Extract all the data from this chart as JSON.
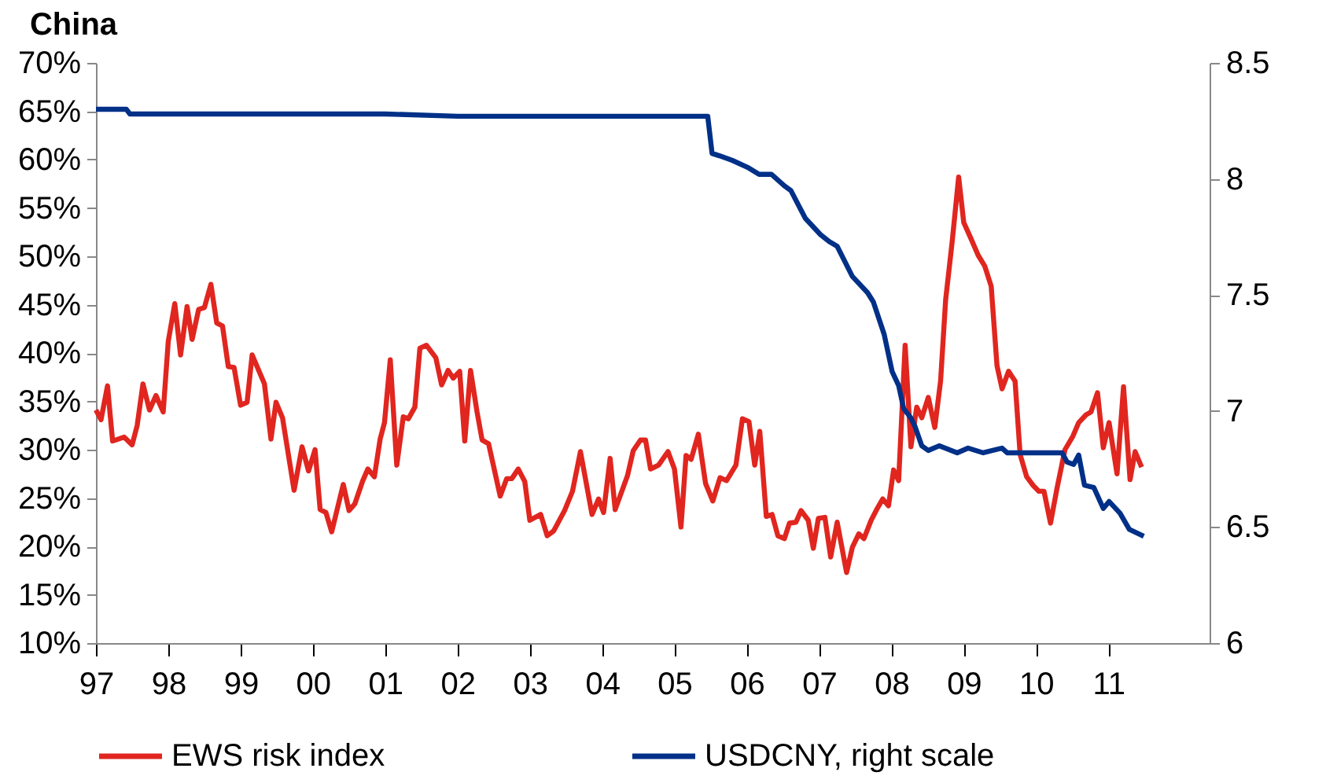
{
  "chart_data": {
    "type": "line",
    "title": "China",
    "xlim": [
      1997,
      2012.4
    ],
    "xticks": [
      {
        "value": 1997,
        "label": "97"
      },
      {
        "value": 1998,
        "label": "98"
      },
      {
        "value": 1999,
        "label": "99"
      },
      {
        "value": 2000,
        "label": "00"
      },
      {
        "value": 2001,
        "label": "01"
      },
      {
        "value": 2002,
        "label": "02"
      },
      {
        "value": 2003,
        "label": "03"
      },
      {
        "value": 2004,
        "label": "04"
      },
      {
        "value": 2005,
        "label": "05"
      },
      {
        "value": 2006,
        "label": "06"
      },
      {
        "value": 2007,
        "label": "07"
      },
      {
        "value": 2008,
        "label": "08"
      },
      {
        "value": 2009,
        "label": "09"
      },
      {
        "value": 2010,
        "label": "10"
      },
      {
        "value": 2011,
        "label": "11"
      }
    ],
    "ylim": [
      10,
      70
    ],
    "yticks": [
      {
        "value": 10,
        "label": "10%"
      },
      {
        "value": 15,
        "label": "15%"
      },
      {
        "value": 20,
        "label": "20%"
      },
      {
        "value": 25,
        "label": "25%"
      },
      {
        "value": 30,
        "label": "30%"
      },
      {
        "value": 35,
        "label": "35%"
      },
      {
        "value": 40,
        "label": "40%"
      },
      {
        "value": 45,
        "label": "45%"
      },
      {
        "value": 50,
        "label": "50%"
      },
      {
        "value": 55,
        "label": "55%"
      },
      {
        "value": 60,
        "label": "60%"
      },
      {
        "value": 65,
        "label": "65%"
      },
      {
        "value": 70,
        "label": "70%"
      }
    ],
    "y2lim": [
      6,
      8.5
    ],
    "y2ticks": [
      6,
      6.5,
      7,
      7.5,
      8,
      8.5
    ],
    "grid": false,
    "legend": "bottom",
    "series": [
      {
        "name": "EWS risk index",
        "color": "#e0261f",
        "x": [
          1997.0,
          1997.07,
          1997.16,
          1997.23,
          1997.39,
          1997.5,
          1997.57,
          1997.65,
          1997.74,
          1997.83,
          1997.93,
          1998.0,
          1998.09,
          1998.17,
          1998.26,
          1998.33,
          1998.42,
          1998.5,
          1998.59,
          1998.67,
          1998.75,
          1998.83,
          1998.91,
          1999.0,
          1999.09,
          1999.16,
          1999.33,
          1999.42,
          1999.49,
          1999.58,
          1999.74,
          1999.85,
          1999.94,
          2000.03,
          2000.1,
          2000.18,
          2000.26,
          2000.42,
          2000.5,
          2000.58,
          2000.69,
          2000.76,
          2000.85,
          2000.93,
          2000.99,
          2001.07,
          2001.16,
          2001.25,
          2001.32,
          2001.41,
          2001.48,
          2001.57,
          2001.7,
          2001.78,
          2001.87,
          2001.94,
          2002.03,
          2002.1,
          2002.18,
          2002.27,
          2002.34,
          2002.43,
          2002.59,
          2002.68,
          2002.75,
          2002.84,
          2002.93,
          2003.0,
          2003.15,
          2003.24,
          2003.33,
          2003.48,
          2003.59,
          2003.7,
          2003.86,
          2003.95,
          2004.02,
          2004.11,
          2004.18,
          2004.35,
          2004.43,
          2004.53,
          2004.6,
          2004.67,
          2004.78,
          2004.91,
          2005.0,
          2005.09,
          2005.16,
          2005.23,
          2005.33,
          2005.43,
          2005.53,
          2005.63,
          2005.72,
          2005.85,
          2005.94,
          2006.03,
          2006.11,
          2006.18,
          2006.27,
          2006.35,
          2006.43,
          2006.52,
          2006.59,
          2006.68,
          2006.75,
          2006.85,
          2006.92,
          2006.99,
          2007.08,
          2007.16,
          2007.25,
          2007.38,
          2007.46,
          2007.55,
          2007.62,
          2007.72,
          2007.81,
          2007.88,
          2007.96,
          2008.03,
          2008.1,
          2008.19,
          2008.27,
          2008.35,
          2008.42,
          2008.51,
          2008.6,
          2008.68,
          2008.75,
          2008.84,
          2008.93,
          2009.0,
          2009.09,
          2009.2,
          2009.29,
          2009.38,
          2009.46,
          2009.53,
          2009.62,
          2009.71,
          2009.78,
          2009.87,
          2009.96,
          2010.04,
          2010.11,
          2010.2,
          2010.29,
          2010.4,
          2010.51,
          2010.59,
          2010.69,
          2010.76,
          2010.85,
          2010.93,
          2011.01,
          2011.12,
          2011.21,
          2011.3,
          2011.37,
          2011.46
        ],
        "values": [
          34.1,
          33.1,
          36.6,
          30.9,
          31.3,
          30.5,
          32.5,
          36.8,
          34.1,
          35.6,
          33.9,
          41.2,
          45.1,
          39.8,
          44.8,
          41.4,
          44.5,
          44.7,
          47.1,
          43.1,
          42.8,
          38.6,
          38.5,
          34.6,
          34.9,
          39.8,
          36.8,
          31.1,
          34.9,
          33.3,
          25.8,
          30.3,
          27.8,
          30.0,
          23.8,
          23.5,
          21.5,
          26.4,
          23.7,
          24.4,
          26.8,
          28.0,
          27.2,
          31.1,
          32.8,
          39.3,
          28.4,
          33.4,
          33.2,
          34.4,
          40.5,
          40.8,
          39.5,
          36.7,
          38.2,
          37.4,
          38.1,
          30.9,
          38.2,
          33.9,
          31.0,
          30.6,
          25.2,
          27.0,
          27.0,
          28.0,
          26.7,
          22.7,
          23.3,
          21.1,
          21.6,
          23.7,
          25.7,
          29.8,
          23.3,
          24.9,
          23.5,
          29.1,
          23.8,
          27.3,
          29.9,
          31.0,
          31.0,
          28.0,
          28.4,
          29.8,
          28.0,
          22.0,
          29.4,
          29.0,
          31.6,
          26.5,
          24.7,
          27.1,
          26.8,
          28.4,
          33.2,
          32.9,
          28.4,
          31.9,
          23.1,
          23.3,
          21.1,
          20.8,
          22.4,
          22.5,
          23.7,
          22.7,
          19.8,
          22.9,
          23.0,
          18.9,
          22.5,
          17.3,
          19.9,
          21.3,
          20.8,
          22.7,
          24.0,
          24.9,
          24.2,
          27.9,
          26.8,
          40.8,
          30.3,
          34.4,
          33.3,
          35.4,
          32.3,
          37.1,
          45.5,
          51.5,
          58.2,
          53.5,
          52.0,
          50.1,
          49.0,
          46.9,
          38.7,
          36.3,
          38.1,
          37.1,
          29.5,
          27.2,
          26.3,
          25.7,
          25.7,
          22.4,
          26.0,
          30.0,
          31.4,
          32.8,
          33.6,
          33.9,
          35.9,
          30.2,
          32.8,
          27.5,
          36.5,
          26.9,
          29.8,
          28.2
        ]
      },
      {
        "name": "USDCNY, right scale",
        "color": "#003087",
        "axis": "y2",
        "x": [
          1997.0,
          1997.42,
          1997.47,
          1998.5,
          1999.0,
          2000.0,
          2001.0,
          2002.0,
          2003.0,
          2004.0,
          2005.0,
          2005.46,
          2005.52,
          2005.62,
          2005.8,
          2006.01,
          2006.17,
          2006.34,
          2006.52,
          2006.61,
          2006.81,
          2007.02,
          2007.14,
          2007.25,
          2007.46,
          2007.67,
          2007.75,
          2007.9,
          2008.01,
          2008.1,
          2008.17,
          2008.27,
          2008.33,
          2008.42,
          2008.51,
          2008.66,
          2008.91,
          2009.06,
          2009.27,
          2009.53,
          2009.6,
          2010.36,
          2010.43,
          2010.52,
          2010.59,
          2010.67,
          2010.8,
          2010.93,
          2011.01,
          2011.16,
          2011.29,
          2011.49
        ],
        "values": [
          8.3,
          8.3,
          8.28,
          8.28,
          8.28,
          8.28,
          8.28,
          8.27,
          8.27,
          8.27,
          8.27,
          8.27,
          8.11,
          8.1,
          8.08,
          8.05,
          8.02,
          8.02,
          7.97,
          7.95,
          7.83,
          7.76,
          7.73,
          7.71,
          7.58,
          7.51,
          7.47,
          7.33,
          7.17,
          7.11,
          7.01,
          6.97,
          6.93,
          6.85,
          6.83,
          6.85,
          6.82,
          6.84,
          6.82,
          6.84,
          6.82,
          6.82,
          6.78,
          6.77,
          6.81,
          6.68,
          6.67,
          6.58,
          6.61,
          6.56,
          6.49,
          6.46
        ]
      }
    ]
  }
}
